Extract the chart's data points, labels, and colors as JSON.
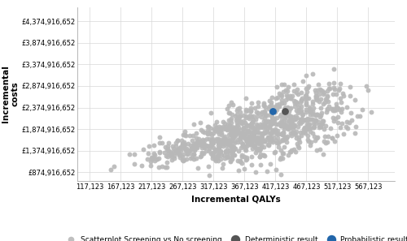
{
  "title": "",
  "xlabel": "Incremental QALYs",
  "ylabel": "Incremental\ncosts",
  "x_min": 117123,
  "x_max": 617123,
  "y_min": 624916652,
  "y_max": 4624916652,
  "x_ticks": [
    117123,
    167123,
    217123,
    267123,
    317123,
    367123,
    417123,
    467123,
    517123,
    567123
  ],
  "y_ticks": [
    874916652,
    1374916652,
    1874916652,
    2374916652,
    2874916652,
    3374916652,
    3874916652,
    4374916652
  ],
  "scatter_color": "#b8b8b8",
  "deterministic_color": "#555555",
  "probabilistic_color": "#2266aa",
  "deterministic_x": 432000,
  "deterministic_y": 2290000000,
  "probabilistic_x": 413000,
  "probabilistic_y": 2290000000,
  "n_points": 1000,
  "seed": 42,
  "legend_scatter": "Scatterplot Screening vs No screening",
  "legend_det": "Deterministic result",
  "legend_prob": "Probabilistic result",
  "background_color": "#ffffff"
}
